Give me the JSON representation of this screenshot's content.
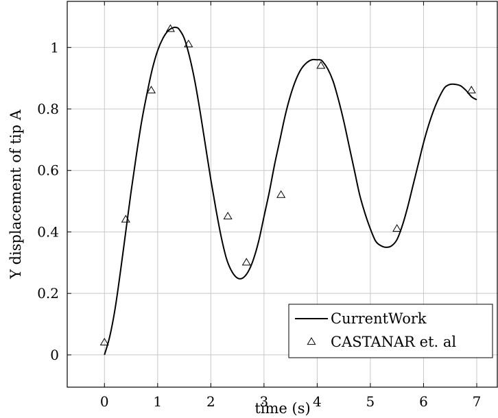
{
  "chart_data": {
    "type": "line",
    "title": "",
    "xlabel": "time (s)",
    "ylabel": "Y displacement of tip A",
    "xlim": [
      -0.7,
      7.4
    ],
    "ylim": [
      -0.105,
      1.15
    ],
    "grid": true,
    "legend_position": "bottom-right",
    "xticks": [
      0,
      1,
      2,
      3,
      4,
      5,
      6,
      7
    ],
    "yticks": [
      0,
      0.2,
      0.4,
      0.6,
      0.8,
      1
    ],
    "xtick_labels": [
      "0",
      "1",
      "2",
      "3",
      "4",
      "5",
      "6",
      "7"
    ],
    "ytick_labels": [
      "0",
      "0.2",
      "0.4",
      "0.6",
      "0.8",
      "1"
    ],
    "series": [
      {
        "name": "CurrentWork",
        "kind": "line",
        "color": "#000000",
        "x": [
          0,
          0.1,
          0.2,
          0.3,
          0.4,
          0.5,
          0.6,
          0.7,
          0.8,
          0.9,
          1.0,
          1.1,
          1.2,
          1.3,
          1.35,
          1.4,
          1.5,
          1.6,
          1.7,
          1.8,
          1.9,
          2.0,
          2.1,
          2.2,
          2.3,
          2.4,
          2.5,
          2.6,
          2.7,
          2.8,
          2.9,
          3.0,
          3.1,
          3.2,
          3.3,
          3.4,
          3.5,
          3.6,
          3.7,
          3.8,
          3.9,
          4.0,
          4.05,
          4.1,
          4.2,
          4.3,
          4.4,
          4.5,
          4.6,
          4.7,
          4.8,
          4.9,
          5.0,
          5.1,
          5.2,
          5.3,
          5.4,
          5.5,
          5.6,
          5.7,
          5.8,
          5.9,
          6.0,
          6.1,
          6.2,
          6.3,
          6.4,
          6.5,
          6.6,
          6.7,
          6.8,
          6.9,
          7.0
        ],
        "y": [
          0.0,
          0.06,
          0.15,
          0.27,
          0.4,
          0.53,
          0.65,
          0.76,
          0.85,
          0.93,
          0.99,
          1.03,
          1.055,
          1.065,
          1.065,
          1.06,
          1.03,
          0.97,
          0.89,
          0.79,
          0.68,
          0.57,
          0.47,
          0.38,
          0.31,
          0.27,
          0.25,
          0.25,
          0.27,
          0.31,
          0.37,
          0.45,
          0.53,
          0.62,
          0.7,
          0.78,
          0.845,
          0.895,
          0.93,
          0.95,
          0.96,
          0.96,
          0.96,
          0.955,
          0.93,
          0.89,
          0.83,
          0.76,
          0.68,
          0.6,
          0.52,
          0.46,
          0.41,
          0.37,
          0.355,
          0.35,
          0.355,
          0.375,
          0.42,
          0.48,
          0.55,
          0.62,
          0.69,
          0.75,
          0.8,
          0.84,
          0.87,
          0.88,
          0.88,
          0.875,
          0.86,
          0.84,
          0.83
        ]
      },
      {
        "name": "CASTANAR et. al",
        "kind": "scatter",
        "marker": "triangle-open",
        "color": "#000000",
        "x": [
          0.0,
          0.4,
          0.88,
          1.24,
          1.58,
          2.32,
          2.67,
          3.32,
          4.07,
          5.5,
          6.9
        ],
        "y": [
          0.04,
          0.44,
          0.86,
          1.06,
          1.01,
          0.45,
          0.3,
          0.52,
          0.94,
          0.41,
          0.86
        ]
      }
    ]
  }
}
